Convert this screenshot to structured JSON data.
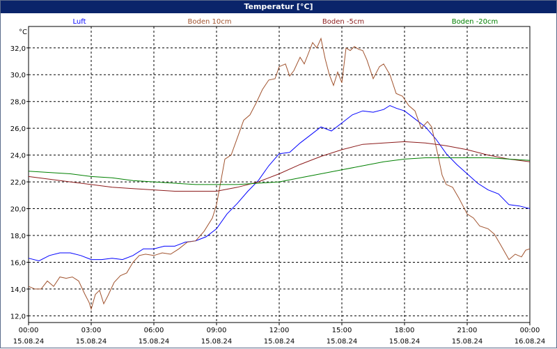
{
  "window": {
    "title": "Temperatur [°C]"
  },
  "chart_data": {
    "type": "line",
    "title": "Temperatur [°C]",
    "ylabel": "°C",
    "ylim": [
      11.5,
      33.6
    ],
    "y_ticks": [
      "32,0",
      "30,0",
      "28,0",
      "26,0",
      "24,0",
      "22,0",
      "20,0",
      "18,0",
      "16,0",
      "14,0",
      "12,0"
    ],
    "y_tick_values": [
      32,
      30,
      28,
      26,
      24,
      22,
      20,
      18,
      16,
      14,
      12
    ],
    "xlim": [
      0,
      24
    ],
    "x_ticks": [
      {
        "hour": 0,
        "time": "00:00",
        "date": "15.08.24"
      },
      {
        "hour": 3,
        "time": "03:00",
        "date": "15.08.24"
      },
      {
        "hour": 6,
        "time": "06:00",
        "date": "15.08.24"
      },
      {
        "hour": 9,
        "time": "09:00",
        "date": "15.08.24"
      },
      {
        "hour": 12,
        "time": "12:00",
        "date": "15.08.24"
      },
      {
        "hour": 15,
        "time": "15:00",
        "date": "15.08.24"
      },
      {
        "hour": 18,
        "time": "18:00",
        "date": "15.08.24"
      },
      {
        "hour": 21,
        "time": "21:00",
        "date": "15.08.24"
      },
      {
        "hour": 24,
        "time": "00:00",
        "date": "16.08.24"
      }
    ],
    "grid": true,
    "legend_position": "top",
    "series": [
      {
        "name": "Luft",
        "color": "#0000ff",
        "points": [
          [
            0,
            16.3
          ],
          [
            0.5,
            16.1
          ],
          [
            1,
            16.5
          ],
          [
            1.5,
            16.7
          ],
          [
            2,
            16.7
          ],
          [
            2.5,
            16.5
          ],
          [
            3,
            16.2
          ],
          [
            3.5,
            16.2
          ],
          [
            4,
            16.3
          ],
          [
            4.5,
            16.2
          ],
          [
            5,
            16.5
          ],
          [
            5.5,
            17.0
          ],
          [
            6,
            17.0
          ],
          [
            6.5,
            17.2
          ],
          [
            7,
            17.2
          ],
          [
            7.5,
            17.5
          ],
          [
            8,
            17.6
          ],
          [
            8.5,
            17.9
          ],
          [
            9,
            18.5
          ],
          [
            9.5,
            19.6
          ],
          [
            10,
            20.4
          ],
          [
            10.5,
            21.3
          ],
          [
            11,
            22.1
          ],
          [
            11.5,
            23.2
          ],
          [
            12,
            24.1
          ],
          [
            12.5,
            24.2
          ],
          [
            13,
            24.9
          ],
          [
            13.5,
            25.5
          ],
          [
            14,
            26.1
          ],
          [
            14.5,
            25.8
          ],
          [
            15,
            26.4
          ],
          [
            15.5,
            27.0
          ],
          [
            16,
            27.3
          ],
          [
            16.5,
            27.2
          ],
          [
            17,
            27.4
          ],
          [
            17.3,
            27.7
          ],
          [
            17.6,
            27.5
          ],
          [
            18,
            27.3
          ],
          [
            18.5,
            26.7
          ],
          [
            19,
            26.1
          ],
          [
            19.5,
            25.2
          ],
          [
            20,
            24.1
          ],
          [
            20.5,
            23.3
          ],
          [
            21,
            22.6
          ],
          [
            21.5,
            21.9
          ],
          [
            22,
            21.4
          ],
          [
            22.5,
            21.1
          ],
          [
            23,
            20.3
          ],
          [
            23.5,
            20.2
          ],
          [
            24,
            20.0
          ]
        ]
      },
      {
        "name": "Boden 10cm",
        "color": "#a0522d",
        "points": [
          [
            0,
            14.2
          ],
          [
            0.3,
            14.0
          ],
          [
            0.6,
            14.0
          ],
          [
            0.9,
            14.6
          ],
          [
            1.2,
            14.2
          ],
          [
            1.5,
            14.9
          ],
          [
            1.8,
            14.8
          ],
          [
            2.1,
            14.9
          ],
          [
            2.4,
            14.6
          ],
          [
            2.7,
            13.6
          ],
          [
            2.9,
            13.0
          ],
          [
            3.0,
            12.5
          ],
          [
            3.2,
            13.6
          ],
          [
            3.4,
            13.9
          ],
          [
            3.6,
            12.9
          ],
          [
            3.8,
            13.5
          ],
          [
            4.1,
            14.5
          ],
          [
            4.4,
            15.0
          ],
          [
            4.7,
            15.2
          ],
          [
            5,
            16.0
          ],
          [
            5.3,
            16.5
          ],
          [
            5.6,
            16.6
          ],
          [
            6,
            16.5
          ],
          [
            6.4,
            16.7
          ],
          [
            6.8,
            16.6
          ],
          [
            7.2,
            17.0
          ],
          [
            7.6,
            17.5
          ],
          [
            8,
            17.6
          ],
          [
            8.4,
            18.3
          ],
          [
            8.8,
            19.3
          ],
          [
            9,
            20.3
          ],
          [
            9.2,
            22.0
          ],
          [
            9.4,
            23.7
          ],
          [
            9.7,
            24.0
          ],
          [
            10,
            25.3
          ],
          [
            10.3,
            26.6
          ],
          [
            10.6,
            27.0
          ],
          [
            10.9,
            27.9
          ],
          [
            11.2,
            28.9
          ],
          [
            11.5,
            29.6
          ],
          [
            11.8,
            29.7
          ],
          [
            12,
            30.6
          ],
          [
            12.3,
            30.8
          ],
          [
            12.5,
            29.9
          ],
          [
            12.7,
            30.3
          ],
          [
            13,
            31.3
          ],
          [
            13.2,
            30.8
          ],
          [
            13.4,
            31.6
          ],
          [
            13.6,
            32.4
          ],
          [
            13.8,
            32.0
          ],
          [
            14,
            32.7
          ],
          [
            14.2,
            31.2
          ],
          [
            14.4,
            30.0
          ],
          [
            14.6,
            29.2
          ],
          [
            14.8,
            30.2
          ],
          [
            15,
            29.4
          ],
          [
            15.2,
            32.0
          ],
          [
            15.4,
            31.8
          ],
          [
            15.6,
            32.1
          ],
          [
            15.8,
            31.9
          ],
          [
            16,
            31.8
          ],
          [
            16.2,
            31.1
          ],
          [
            16.5,
            29.7
          ],
          [
            16.8,
            30.6
          ],
          [
            17,
            30.8
          ],
          [
            17.3,
            30.0
          ],
          [
            17.6,
            28.6
          ],
          [
            17.9,
            28.4
          ],
          [
            18.2,
            27.7
          ],
          [
            18.5,
            27.3
          ],
          [
            18.8,
            26.0
          ],
          [
            19.1,
            26.5
          ],
          [
            19.3,
            26.1
          ],
          [
            19.6,
            24.0
          ],
          [
            19.8,
            22.5
          ],
          [
            20,
            21.8
          ],
          [
            20.3,
            21.6
          ],
          [
            20.6,
            20.8
          ],
          [
            21,
            19.6
          ],
          [
            21.3,
            19.3
          ],
          [
            21.6,
            18.7
          ],
          [
            22,
            18.5
          ],
          [
            22.3,
            18.1
          ],
          [
            22.6,
            17.3
          ],
          [
            23,
            16.2
          ],
          [
            23.3,
            16.6
          ],
          [
            23.6,
            16.4
          ],
          [
            23.8,
            16.9
          ],
          [
            24,
            17.0
          ]
        ]
      },
      {
        "name": "Boden -5cm",
        "color": "#8b1a1a",
        "points": [
          [
            0,
            22.4
          ],
          [
            1,
            22.2
          ],
          [
            2,
            22.0
          ],
          [
            3,
            21.8
          ],
          [
            4,
            21.6
          ],
          [
            5,
            21.5
          ],
          [
            6,
            21.4
          ],
          [
            7,
            21.3
          ],
          [
            8,
            21.3
          ],
          [
            9,
            21.3
          ],
          [
            10,
            21.6
          ],
          [
            11,
            22.0
          ],
          [
            12,
            22.6
          ],
          [
            13,
            23.3
          ],
          [
            14,
            23.9
          ],
          [
            15,
            24.4
          ],
          [
            16,
            24.8
          ],
          [
            17,
            24.9
          ],
          [
            18,
            25.0
          ],
          [
            19,
            24.9
          ],
          [
            20,
            24.7
          ],
          [
            21,
            24.4
          ],
          [
            22,
            24.0
          ],
          [
            23,
            23.7
          ],
          [
            24,
            23.5
          ]
        ]
      },
      {
        "name": "Boden -20cm",
        "color": "#008000",
        "points": [
          [
            0,
            22.8
          ],
          [
            1,
            22.7
          ],
          [
            2,
            22.6
          ],
          [
            3,
            22.4
          ],
          [
            4,
            22.3
          ],
          [
            5,
            22.1
          ],
          [
            6,
            22.0
          ],
          [
            7,
            21.9
          ],
          [
            8,
            21.8
          ],
          [
            9,
            21.8
          ],
          [
            10,
            21.8
          ],
          [
            11,
            21.9
          ],
          [
            12,
            22.0
          ],
          [
            13,
            22.3
          ],
          [
            14,
            22.6
          ],
          [
            15,
            22.9
          ],
          [
            16,
            23.2
          ],
          [
            17,
            23.5
          ],
          [
            18,
            23.7
          ],
          [
            19,
            23.8
          ],
          [
            20,
            23.8
          ],
          [
            21,
            23.8
          ],
          [
            22,
            23.8
          ],
          [
            23,
            23.7
          ],
          [
            24,
            23.6
          ]
        ]
      }
    ]
  }
}
